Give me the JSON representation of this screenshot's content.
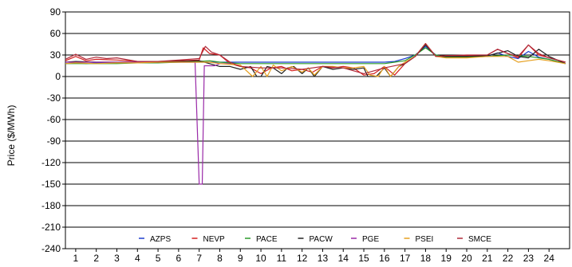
{
  "chart_data": {
    "type": "line",
    "ylabel": "Price ($/MWh)",
    "xlabel": "",
    "ylim": [
      -240,
      90
    ],
    "xlim": [
      0.5,
      25
    ],
    "y_ticks": [
      90,
      60,
      30,
      0,
      -30,
      -60,
      -90,
      -120,
      -150,
      -180,
      -210,
      -240
    ],
    "x_ticks": [
      1,
      2,
      3,
      4,
      5,
      6,
      7,
      8,
      9,
      10,
      11,
      12,
      13,
      14,
      15,
      16,
      17,
      18,
      19,
      20,
      21,
      22,
      23,
      24
    ],
    "grid": "horizontal",
    "legend_position": "bottom",
    "series": [
      {
        "name": "AZPS",
        "color": "#1f3fcf",
        "x": [
          0.5,
          1,
          1.5,
          2,
          3,
          4,
          5,
          6,
          7,
          7.3,
          8,
          8.5,
          9,
          9.5,
          10,
          10.5,
          11,
          11.5,
          12,
          12.5,
          13,
          13.5,
          14,
          14.5,
          15,
          15.5,
          16,
          16.5,
          17,
          17.5,
          18,
          18.5,
          19,
          20,
          21,
          21.5,
          22,
          22.5,
          23,
          23.5,
          24,
          24.8
        ],
        "y": [
          18,
          19,
          18,
          19,
          19,
          20,
          20,
          20,
          20,
          20,
          20,
          20,
          20,
          20,
          20,
          20,
          20,
          20,
          20,
          20,
          20,
          20,
          20,
          20,
          20,
          20,
          20,
          21,
          25,
          30,
          42,
          30,
          27,
          27,
          28,
          33,
          28,
          25,
          35,
          27,
          24,
          18
        ]
      },
      {
        "name": "NEVP",
        "color": "#d42020",
        "x": [
          0.5,
          1,
          1.5,
          2,
          3,
          4,
          5,
          6,
          7,
          7.2,
          7.5,
          8,
          8.5,
          9,
          9.5,
          10,
          10.5,
          11,
          11.5,
          12,
          12.5,
          13,
          13.5,
          14,
          14.5,
          15,
          15.5,
          16,
          16.5,
          17,
          17.5,
          18,
          18.5,
          19,
          20,
          21,
          21.5,
          22,
          22.5,
          23,
          23.5,
          24,
          24.8
        ],
        "y": [
          22,
          28,
          22,
          24,
          23,
          21,
          21,
          22,
          23,
          40,
          32,
          30,
          18,
          14,
          12,
          4,
          12,
          14,
          8,
          10,
          6,
          14,
          12,
          14,
          12,
          2,
          4,
          14,
          2,
          18,
          28,
          46,
          28,
          29,
          29,
          30,
          38,
          32,
          26,
          44,
          30,
          26,
          20
        ]
      },
      {
        "name": "PACE",
        "color": "#2a9a2a",
        "x": [
          0.5,
          1,
          2,
          3,
          4,
          5,
          6,
          7,
          7.5,
          8,
          9,
          10,
          11,
          12,
          13,
          14,
          15,
          16,
          16.5,
          17,
          17.5,
          18,
          18.5,
          19,
          20,
          21,
          22,
          23,
          24,
          24.8
        ],
        "y": [
          18,
          18,
          18,
          18,
          19,
          19,
          20,
          21,
          22,
          20,
          18,
          18,
          18,
          18,
          18,
          18,
          18,
          18,
          20,
          22,
          30,
          40,
          30,
          27,
          27,
          28,
          30,
          28,
          24,
          18
        ]
      },
      {
        "name": "PACW",
        "color": "#222222",
        "x": [
          0.5,
          1,
          2,
          3,
          4,
          5,
          6,
          7,
          7.5,
          8,
          8.5,
          9,
          9.5,
          9.8,
          10,
          10.3,
          10.6,
          11,
          11.3,
          11.6,
          12,
          12.3,
          12.6,
          13,
          13.5,
          14,
          14.5,
          15,
          15.2,
          15.6,
          16,
          16.3,
          16.7,
          17,
          17.5,
          18,
          18.5,
          19,
          20,
          21,
          22,
          22.5,
          23,
          23.5,
          24,
          24.8
        ],
        "y": [
          20,
          21,
          20,
          20,
          20,
          20,
          21,
          22,
          18,
          14,
          14,
          10,
          14,
          0,
          0,
          14,
          12,
          4,
          12,
          14,
          4,
          12,
          0,
          14,
          10,
          12,
          10,
          12,
          0,
          0,
          12,
          0,
          14,
          18,
          28,
          44,
          28,
          28,
          28,
          29,
          36,
          28,
          26,
          38,
          28,
          18
        ]
      },
      {
        "name": "PGE",
        "color": "#9a2aa8",
        "x": [
          0.5,
          1,
          2,
          3,
          4,
          5,
          6,
          6.8,
          7.0,
          7.15,
          7.25,
          7.5,
          7.75,
          8,
          8.5
        ],
        "y": [
          20,
          20,
          20,
          20,
          20,
          20,
          20,
          20,
          -150,
          -150,
          15,
          15,
          15,
          18,
          18
        ]
      },
      {
        "name": "PSEI",
        "color": "#e6a020",
        "x": [
          0.5,
          1,
          2,
          3,
          4,
          5,
          6,
          7,
          7.5,
          8,
          9,
          9.6,
          10,
          10.3,
          10.6,
          11,
          11.5,
          12,
          12.3,
          12.6,
          13,
          13.5,
          14,
          14.5,
          15,
          15.3,
          15.7,
          16,
          16.3,
          16.7,
          17,
          17.5,
          18,
          18.5,
          19,
          20,
          21,
          22,
          22.5,
          23,
          23.5,
          24,
          24.8
        ],
        "y": [
          18,
          19,
          18,
          19,
          19,
          20,
          20,
          20,
          20,
          18,
          16,
          0,
          14,
          0,
          16,
          8,
          14,
          6,
          12,
          2,
          14,
          14,
          12,
          12,
          14,
          2,
          0,
          14,
          0,
          14,
          20,
          28,
          46,
          28,
          26,
          26,
          28,
          28,
          20,
          22,
          24,
          22,
          18
        ]
      },
      {
        "name": "SMCE",
        "color": "#b02a3a",
        "x": [
          0.5,
          1,
          1.5,
          2,
          2.5,
          3,
          4,
          5,
          6,
          7,
          7.3,
          7.6,
          8,
          8.5,
          9,
          10,
          11,
          12,
          13,
          14,
          15,
          16,
          17,
          17.5,
          18,
          18.5,
          19,
          20,
          21,
          21.5,
          22,
          22.5,
          23,
          23.5,
          24,
          24.8
        ],
        "y": [
          24,
          31,
          24,
          27,
          25,
          26,
          21,
          21,
          23,
          25,
          42,
          34,
          30,
          20,
          14,
          12,
          12,
          10,
          14,
          12,
          4,
          12,
          18,
          28,
          46,
          28,
          29,
          30,
          30,
          38,
          32,
          28,
          44,
          32,
          26,
          20
        ]
      }
    ]
  }
}
